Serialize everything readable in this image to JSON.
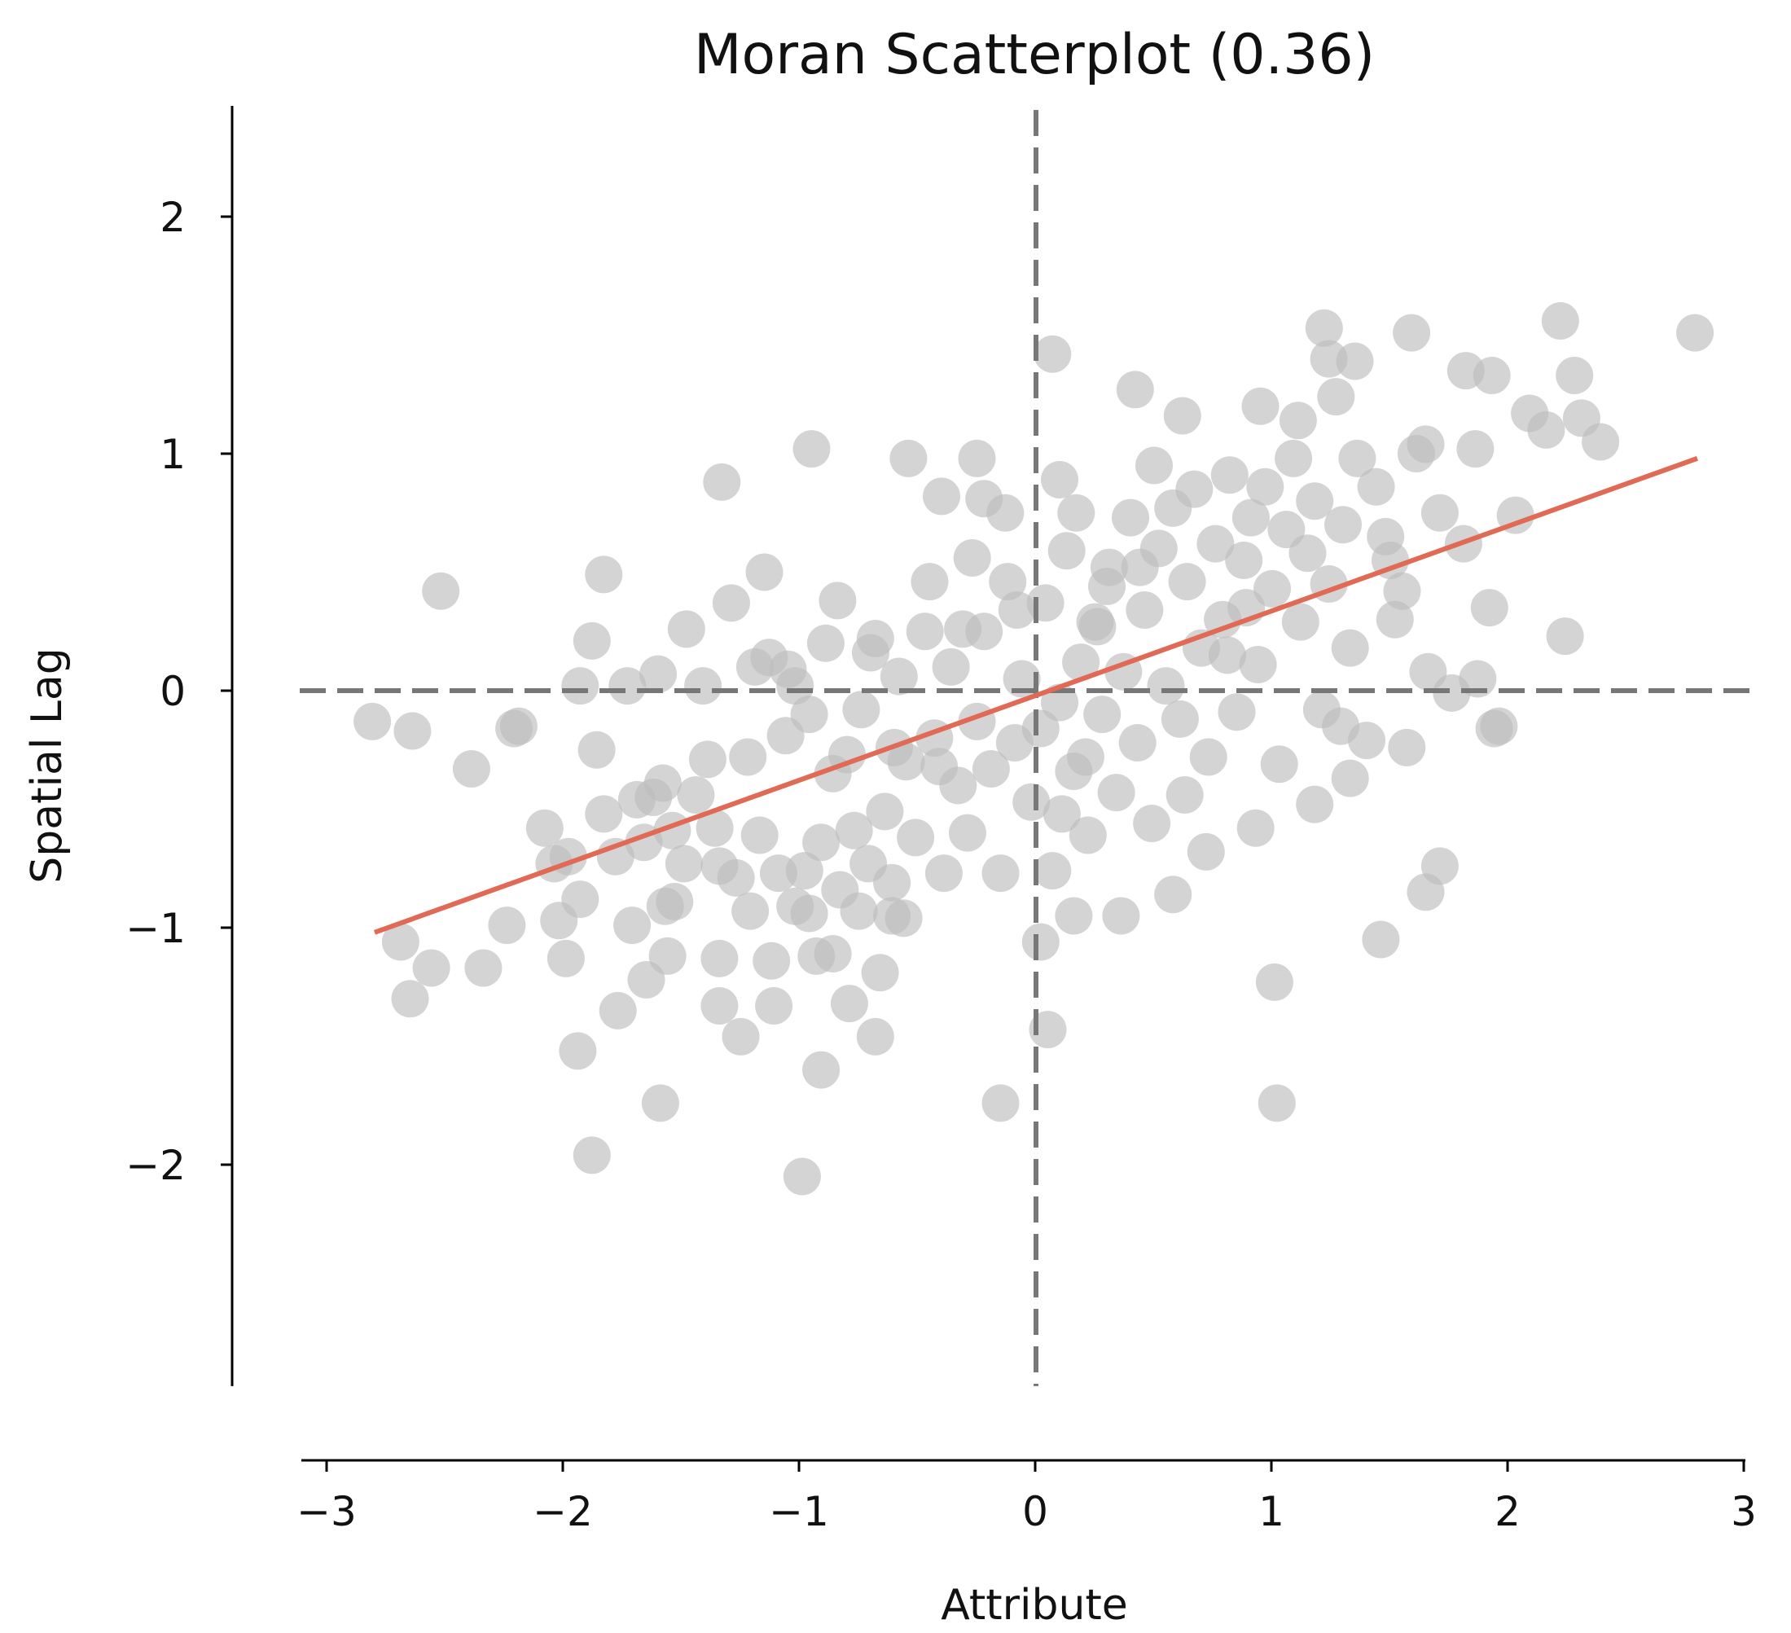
{
  "chart_data": {
    "type": "scatter",
    "title": "Moran Scatterplot (0.36)",
    "xlabel": "Attribute",
    "ylabel": "Spatial Lag",
    "xlim": [
      -3.1,
      3.1
    ],
    "ylim": [
      -2.9,
      2.45
    ],
    "x_ticks": [
      -3,
      -2,
      -1,
      0,
      1,
      2,
      3
    ],
    "x_tick_labels": [
      "−3",
      "−2",
      "−1",
      "0",
      "1",
      "2",
      "3"
    ],
    "y_ticks": [
      2,
      1,
      0,
      -1,
      -2
    ],
    "y_tick_labels": [
      "2",
      "1",
      "0",
      "−1",
      "−2"
    ],
    "grid": false,
    "reference_lines": {
      "x": 0,
      "y": 0,
      "style": "dashed",
      "color": "#777777"
    },
    "fit_line": {
      "slope": 0.36,
      "x": [
        -2.8,
        2.8
      ],
      "y": [
        -1.02,
        0.98
      ],
      "color": "#e06a55"
    },
    "point_color": "#bdbdbd",
    "point_opacity": 0.65,
    "points": [
      [
        -2.81,
        -0.13
      ],
      [
        -2.64,
        -0.17
      ],
      [
        -2.39,
        -0.33
      ],
      [
        -2.21,
        -0.16
      ],
      [
        -2.19,
        -0.15
      ],
      [
        -2.08,
        -0.58
      ],
      [
        -2.04,
        -0.73
      ],
      [
        -1.98,
        -0.7
      ],
      [
        -1.93,
        -0.88
      ],
      [
        -1.88,
        0.21
      ],
      [
        -1.86,
        -0.25
      ],
      [
        -1.83,
        -0.52
      ],
      [
        -1.78,
        -0.7
      ],
      [
        -1.73,
        0.02
      ],
      [
        -1.69,
        -0.46
      ],
      [
        -1.66,
        -0.64
      ],
      [
        -1.62,
        -0.45
      ],
      [
        -1.58,
        -0.39
      ],
      [
        -1.54,
        -0.59
      ],
      [
        -1.49,
        -0.73
      ],
      [
        -1.48,
        0.26
      ],
      [
        -1.44,
        -0.44
      ],
      [
        -1.41,
        0.02
      ],
      [
        -1.39,
        -0.29
      ],
      [
        -1.36,
        -0.58
      ],
      [
        -1.34,
        -0.74
      ],
      [
        -1.29,
        0.37
      ],
      [
        -1.27,
        -0.79
      ],
      [
        -1.22,
        -0.28
      ],
      [
        -1.19,
        0.1
      ],
      [
        -1.17,
        -0.61
      ],
      [
        -1.13,
        0.14
      ],
      [
        -1.09,
        -0.77
      ],
      [
        -1.06,
        -0.19
      ],
      [
        -1.02,
        0.02
      ],
      [
        -0.98,
        -0.76
      ],
      [
        -0.96,
        -0.1
      ],
      [
        -0.91,
        -0.64
      ],
      [
        -0.89,
        0.2
      ],
      [
        -0.86,
        -0.35
      ],
      [
        -0.83,
        -0.84
      ],
      [
        -0.8,
        -0.27
      ],
      [
        -0.77,
        -0.59
      ],
      [
        -0.74,
        -0.08
      ],
      [
        -0.71,
        -0.73
      ],
      [
        -0.68,
        0.22
      ],
      [
        -0.64,
        -0.51
      ],
      [
        -0.61,
        -0.81
      ],
      [
        -0.58,
        0.06
      ],
      [
        -0.55,
        -0.3
      ],
      [
        -0.51,
        -0.62
      ],
      [
        -0.47,
        0.25
      ],
      [
        -0.43,
        -0.2
      ],
      [
        -0.39,
        -0.77
      ],
      [
        -0.36,
        0.1
      ],
      [
        -0.33,
        -0.4
      ],
      [
        -0.29,
        -0.6
      ],
      [
        -0.25,
        -0.13
      ],
      [
        -0.22,
        0.25
      ],
      [
        -0.19,
        -0.33
      ],
      [
        -0.15,
        -0.77
      ],
      [
        -0.12,
        0.46
      ],
      [
        -0.09,
        -0.22
      ],
      [
        -0.06,
        0.05
      ],
      [
        -0.02,
        -0.47
      ],
      [
        0.02,
        -0.16
      ],
      [
        0.04,
        0.37
      ],
      [
        0.07,
        -0.76
      ],
      [
        0.1,
        -0.05
      ],
      [
        0.13,
        0.59
      ],
      [
        0.16,
        -0.34
      ],
      [
        0.19,
        0.12
      ],
      [
        0.22,
        -0.61
      ],
      [
        0.25,
        0.29
      ],
      [
        0.28,
        -0.1
      ],
      [
        0.31,
        0.52
      ],
      [
        0.34,
        -0.43
      ],
      [
        0.37,
        0.08
      ],
      [
        0.4,
        0.73
      ],
      [
        0.43,
        -0.22
      ],
      [
        0.46,
        0.34
      ],
      [
        0.49,
        -0.56
      ],
      [
        0.52,
        0.6
      ],
      [
        0.55,
        0.02
      ],
      [
        0.58,
        0.77
      ],
      [
        0.61,
        -0.12
      ],
      [
        0.64,
        0.46
      ],
      [
        0.67,
        0.85
      ],
      [
        0.7,
        0.18
      ],
      [
        0.73,
        -0.28
      ],
      [
        0.76,
        0.62
      ],
      [
        0.79,
        0.3
      ],
      [
        0.82,
        0.91
      ],
      [
        0.85,
        -0.09
      ],
      [
        0.88,
        0.55
      ],
      [
        0.91,
        0.73
      ],
      [
        0.94,
        0.11
      ],
      [
        0.97,
        0.86
      ],
      [
        1.0,
        0.43
      ],
      [
        1.03,
        -0.31
      ],
      [
        1.06,
        0.68
      ],
      [
        1.09,
        0.98
      ],
      [
        1.12,
        0.29
      ],
      [
        1.15,
        0.58
      ],
      [
        1.18,
        0.8
      ],
      [
        1.21,
        -0.08
      ],
      [
        1.24,
        0.45
      ],
      [
        1.27,
        1.24
      ],
      [
        1.3,
        0.7
      ],
      [
        1.33,
        0.18
      ],
      [
        1.36,
        0.98
      ],
      [
        1.4,
        -0.21
      ],
      [
        1.44,
        0.86
      ],
      [
        1.48,
        0.65
      ],
      [
        1.52,
        0.3
      ],
      [
        1.57,
        -0.24
      ],
      [
        1.61,
        1.0
      ],
      [
        1.66,
        0.08
      ],
      [
        1.71,
        0.75
      ],
      [
        1.76,
        -0.01
      ],
      [
        1.81,
        0.62
      ],
      [
        1.86,
        1.02
      ],
      [
        1.92,
        0.35
      ],
      [
        1.96,
        -0.15
      ],
      [
        2.03,
        0.74
      ],
      [
        2.09,
        1.17
      ],
      [
        2.16,
        1.1
      ],
      [
        2.24,
        0.23
      ],
      [
        2.31,
        1.15
      ],
      [
        2.39,
        1.05
      ],
      [
        -2.69,
        -1.06
      ],
      [
        -2.56,
        -1.17
      ],
      [
        -2.34,
        -1.17
      ],
      [
        -2.24,
        -0.99
      ],
      [
        -2.02,
        -0.97
      ],
      [
        -1.99,
        -1.13
      ],
      [
        -1.94,
        -1.52
      ],
      [
        -1.88,
        -1.96
      ],
      [
        -1.77,
        -1.35
      ],
      [
        -1.71,
        -0.99
      ],
      [
        -1.65,
        -1.22
      ],
      [
        -1.57,
        -0.91
      ],
      [
        -1.56,
        -1.12
      ],
      [
        -1.53,
        -0.89
      ],
      [
        -1.34,
        -1.13
      ],
      [
        -1.34,
        -1.33
      ],
      [
        -1.25,
        -1.46
      ],
      [
        -1.21,
        -0.93
      ],
      [
        -1.12,
        -1.14
      ],
      [
        -1.11,
        -1.33
      ],
      [
        -1.02,
        -0.91
      ],
      [
        -0.96,
        -0.94
      ],
      [
        -0.93,
        -1.12
      ],
      [
        -0.91,
        -1.6
      ],
      [
        -0.86,
        -1.11
      ],
      [
        -0.79,
        -1.32
      ],
      [
        -0.75,
        -0.93
      ],
      [
        -0.68,
        -1.46
      ],
      [
        -0.66,
        -1.19
      ],
      [
        -0.61,
        -0.95
      ],
      [
        -0.56,
        -0.96
      ],
      [
        -0.99,
        -2.05
      ],
      [
        -0.15,
        -1.74
      ],
      [
        0.02,
        -1.06
      ],
      [
        0.05,
        -1.43
      ],
      [
        0.16,
        -0.95
      ],
      [
        0.36,
        -0.95
      ],
      [
        0.58,
        -0.86
      ],
      [
        1.01,
        -1.23
      ],
      [
        1.02,
        -1.74
      ],
      [
        1.46,
        -1.05
      ],
      [
        1.65,
        -0.85
      ],
      [
        1.71,
        -0.74
      ],
      [
        -1.59,
        -1.74
      ],
      [
        -2.65,
        -1.3
      ],
      [
        -2.52,
        0.42
      ],
      [
        -1.83,
        0.49
      ],
      [
        -1.33,
        0.88
      ],
      [
        -1.15,
        0.5
      ],
      [
        -0.95,
        1.02
      ],
      [
        -0.54,
        0.98
      ],
      [
        -0.4,
        0.82
      ],
      [
        -0.25,
        0.98
      ],
      [
        -0.22,
        0.81
      ],
      [
        -0.13,
        0.75
      ],
      [
        0.07,
        1.42
      ],
      [
        0.1,
        0.89
      ],
      [
        0.17,
        0.75
      ],
      [
        0.42,
        1.27
      ],
      [
        0.62,
        1.16
      ],
      [
        1.22,
        1.53
      ],
      [
        1.24,
        1.4
      ],
      [
        1.35,
        1.39
      ],
      [
        1.59,
        1.51
      ],
      [
        1.82,
        1.35
      ],
      [
        1.93,
        1.33
      ],
      [
        2.22,
        1.56
      ],
      [
        2.28,
        1.33
      ],
      [
        2.79,
        1.51
      ],
      [
        1.65,
        1.04
      ],
      [
        1.5,
        0.55
      ],
      [
        -0.45,
        0.46
      ],
      [
        -0.84,
        0.38
      ],
      [
        -1.93,
        0.02
      ],
      [
        0.89,
        0.35
      ],
      [
        0.44,
        0.52
      ],
      [
        0.21,
        -0.28
      ],
      [
        -0.41,
        -0.32
      ],
      [
        0.63,
        -0.44
      ],
      [
        0.11,
        -0.52
      ],
      [
        -0.27,
        0.56
      ],
      [
        0.72,
        -0.68
      ],
      [
        0.93,
        -0.58
      ],
      [
        1.18,
        -0.48
      ],
      [
        1.33,
        -0.37
      ],
      [
        1.94,
        -0.16
      ],
      [
        1.87,
        0.05
      ],
      [
        0.3,
        0.44
      ],
      [
        -0.6,
        -0.24
      ],
      [
        -0.08,
        0.34
      ],
      [
        0.5,
        0.95
      ],
      [
        0.95,
        1.2
      ],
      [
        1.11,
        1.14
      ],
      [
        1.55,
        0.42
      ],
      [
        -1.6,
        0.07
      ],
      [
        -1.05,
        0.09
      ],
      [
        -0.7,
        0.16
      ],
      [
        0.81,
        0.15
      ],
      [
        1.29,
        -0.15
      ],
      [
        -0.31,
        0.26
      ],
      [
        0.26,
        0.27
      ]
    ]
  }
}
